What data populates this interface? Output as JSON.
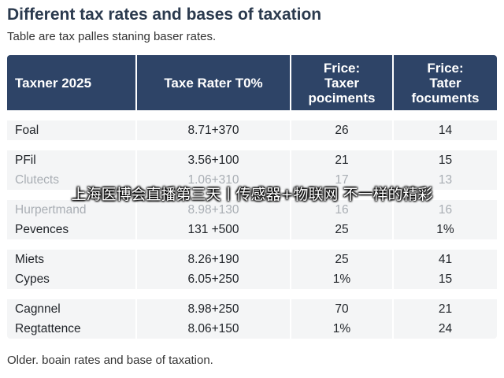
{
  "title": "Different tax rates and bases of taxation",
  "subtitle": "Table are tax palles staning baser rates.",
  "table": {
    "headers": [
      "Taxner 2025",
      "Taxe Rater T0%",
      "Frice:\nTaxer\npociments",
      "Frice:\nTater\nfocuments"
    ],
    "rows": [
      [
        "Foal",
        "8.71+370",
        "26",
        "14"
      ],
      [
        "PFil",
        "3.56+100",
        "21",
        "15"
      ],
      [
        "Clutects",
        "1.06+310",
        "17",
        "13"
      ],
      [
        "Hurpertmand",
        "8.98+130",
        "16",
        "16"
      ],
      [
        "Pevences",
        "131 +500",
        "25",
        "1%"
      ],
      [
        "Miets",
        "8.26+190",
        "25",
        "41"
      ],
      [
        "Cypes",
        "6.05+250",
        "1%",
        "15"
      ],
      [
        "Cagnnel",
        "8.98+250",
        "70",
        "21"
      ],
      [
        "Regtattence",
        "8.06+150",
        "1%",
        "24"
      ]
    ]
  },
  "footer": "Older. boain rates and base of taxation.",
  "overlay_caption": "上海医博会直播第三天丨传感器+物联网 不一样的精彩"
}
